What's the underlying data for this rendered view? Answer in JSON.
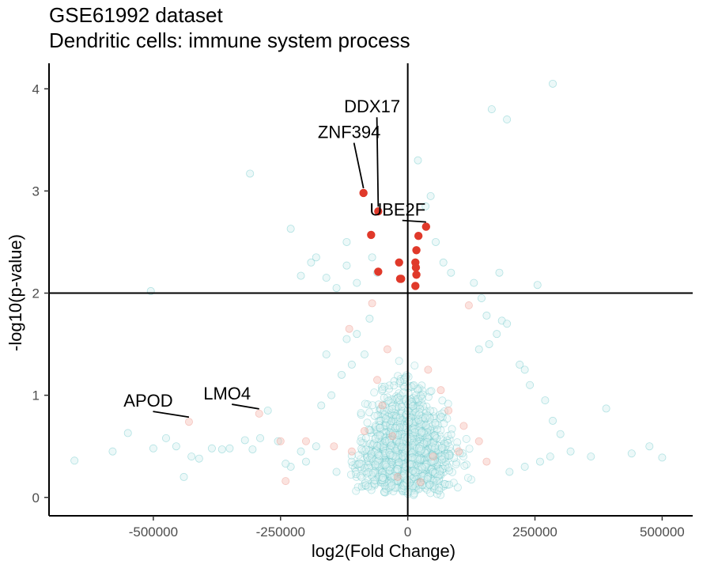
{
  "chart_data": {
    "type": "scatter",
    "title": "GSE61992 dataset",
    "subtitle": "Dendritic cells: immune system process",
    "xlabel": "log2(Fold Change)",
    "ylabel": "-log10(p-value)",
    "xlim": [
      -705000,
      560000
    ],
    "ylim": [
      -0.18,
      4.25
    ],
    "xticks": [
      -500000,
      -250000,
      0,
      250000,
      500000
    ],
    "xtick_labels": [
      "-500000",
      "-250000",
      "0",
      "250000",
      "500000"
    ],
    "yticks": [
      0,
      1,
      2,
      3,
      4
    ],
    "ytick_labels": [
      "0",
      "1",
      "2",
      "3",
      "4"
    ],
    "threshold_lines": {
      "x": 0,
      "y": 2
    },
    "grid": false,
    "legend": "none",
    "colors": {
      "background": "#dff3f4",
      "background_highlight": "#f5b8b0",
      "significant": "#e0392a",
      "axis": "#000000"
    },
    "background_points": [
      [
        -655000,
        0.36
      ],
      [
        -580000,
        0.45
      ],
      [
        -550000,
        0.63
      ],
      [
        -505000,
        2.02
      ],
      [
        -500000,
        0.48
      ],
      [
        -475000,
        0.58
      ],
      [
        -455000,
        0.5
      ],
      [
        -440000,
        0.2
      ],
      [
        -425000,
        0.4
      ],
      [
        -410000,
        0.38
      ],
      [
        -385000,
        0.48
      ],
      [
        -365000,
        0.47
      ],
      [
        -350000,
        0.48
      ],
      [
        -320000,
        0.56
      ],
      [
        -305000,
        0.47
      ],
      [
        -290000,
        0.58
      ],
      [
        -275000,
        0.85
      ],
      [
        -310000,
        3.17
      ],
      [
        -230000,
        2.63
      ],
      [
        -210000,
        2.17
      ],
      [
        -190000,
        2.3
      ],
      [
        -180000,
        2.35
      ],
      [
        -160000,
        2.15
      ],
      [
        -140000,
        2.05
      ],
      [
        -120000,
        2.27
      ],
      [
        -100000,
        2.1
      ],
      [
        -60000,
        2.2
      ],
      [
        -120000,
        2.5
      ],
      [
        -70000,
        2.35
      ],
      [
        20000,
        3.3
      ],
      [
        35000,
        2.85
      ],
      [
        45000,
        2.95
      ],
      [
        55000,
        2.5
      ],
      [
        70000,
        2.3
      ],
      [
        85000,
        2.2
      ],
      [
        130000,
        2.1
      ],
      [
        145000,
        1.95
      ],
      [
        155000,
        1.78
      ],
      [
        175000,
        1.6
      ],
      [
        180000,
        2.2
      ],
      [
        185000,
        1.73
      ],
      [
        195000,
        1.7
      ],
      [
        255000,
        2.08
      ],
      [
        285000,
        4.05
      ],
      [
        195000,
        3.7
      ],
      [
        165000,
        3.8
      ],
      [
        140000,
        1.45
      ],
      [
        160000,
        1.5
      ],
      [
        220000,
        1.3
      ],
      [
        230000,
        1.25
      ],
      [
        240000,
        1.1
      ],
      [
        270000,
        0.95
      ],
      [
        285000,
        0.75
      ],
      [
        300000,
        0.62
      ],
      [
        320000,
        0.45
      ],
      [
        360000,
        0.4
      ],
      [
        390000,
        0.87
      ],
      [
        440000,
        0.43
      ],
      [
        475000,
        0.5
      ],
      [
        500000,
        0.39
      ],
      [
        280000,
        0.4
      ],
      [
        260000,
        0.35
      ],
      [
        230000,
        0.3
      ],
      [
        200000,
        0.25
      ],
      [
        -230000,
        0.3
      ],
      [
        -200000,
        0.35
      ],
      [
        -180000,
        0.5
      ],
      [
        -170000,
        0.9
      ],
      [
        -150000,
        1.0
      ],
      [
        -130000,
        1.2
      ],
      [
        -110000,
        1.3
      ],
      [
        -120000,
        1.55
      ],
      [
        -100000,
        1.6
      ],
      [
        -85000,
        1.4
      ],
      [
        -75000,
        1.75
      ],
      [
        -160000,
        1.4
      ],
      [
        -140000,
        0.25
      ],
      [
        -255000,
        0.55
      ],
      [
        -240000,
        0.33
      ],
      [
        -210000,
        0.45
      ]
    ],
    "highlight_background_points": [
      [
        -430000,
        0.74
      ],
      [
        -292000,
        0.82
      ],
      [
        -240000,
        0.16
      ],
      [
        -250000,
        0.55
      ],
      [
        -200000,
        0.55
      ],
      [
        -145000,
        0.5
      ],
      [
        -110000,
        0.45
      ],
      [
        -85000,
        0.65
      ],
      [
        -60000,
        1.15
      ],
      [
        -50000,
        0.9
      ],
      [
        -40000,
        1.45
      ],
      [
        -115000,
        1.65
      ],
      [
        -70000,
        1.9
      ],
      [
        40000,
        1.25
      ],
      [
        65000,
        1.05
      ],
      [
        80000,
        0.85
      ],
      [
        110000,
        0.7
      ],
      [
        140000,
        0.55
      ],
      [
        155000,
        0.35
      ],
      [
        120000,
        1.88
      ],
      [
        100000,
        0.45
      ],
      [
        -20000,
        0.2
      ],
      [
        25000,
        0.15
      ],
      [
        -30000,
        0.6
      ],
      [
        50000,
        0.4
      ]
    ],
    "significant_points": [
      {
        "x": -87000,
        "y": 2.98,
        "label": "ZNF394"
      },
      {
        "x": -58000,
        "y": 2.8,
        "label": "DDX17"
      },
      {
        "x": 36000,
        "y": 2.65,
        "label": "UBE2F"
      },
      {
        "x": -72000,
        "y": 2.57
      },
      {
        "x": 21000,
        "y": 2.56
      },
      {
        "x": 17000,
        "y": 2.42
      },
      {
        "x": -17000,
        "y": 2.3
      },
      {
        "x": 15000,
        "y": 2.3
      },
      {
        "x": 16000,
        "y": 2.25
      },
      {
        "x": -58000,
        "y": 2.21
      },
      {
        "x": 17000,
        "y": 2.18
      },
      {
        "x": -15000,
        "y": 2.14
      },
      {
        "x": -13000,
        "y": 2.14
      },
      {
        "x": 15000,
        "y": 2.07
      }
    ],
    "annotations": [
      {
        "label": "DDX17",
        "point": [
          -58000,
          2.8
        ],
        "text_at": [
          -70000,
          3.83
        ]
      },
      {
        "label": "ZNF394",
        "point": [
          -87000,
          2.98
        ],
        "text_at": [
          -115000,
          3.58
        ]
      },
      {
        "label": "UBE2F",
        "point": [
          36000,
          2.65
        ],
        "text_at": [
          -20000,
          2.82
        ]
      },
      {
        "label": "APOD",
        "point": [
          -430000,
          0.74
        ],
        "text_at": [
          -510000,
          0.95
        ]
      },
      {
        "label": "LMO4",
        "point": [
          -292000,
          0.82
        ],
        "text_at": [
          -355000,
          1.02
        ]
      }
    ]
  }
}
